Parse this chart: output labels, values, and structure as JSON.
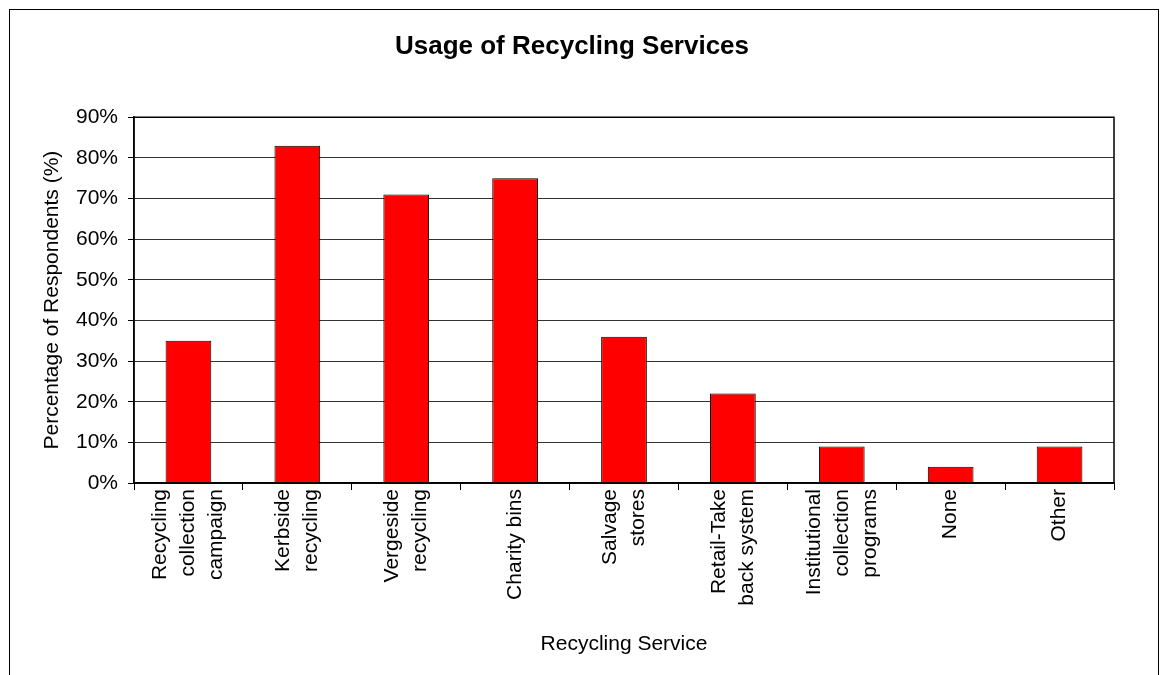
{
  "chart_data": {
    "type": "bar",
    "title": "Usage of Recycling Services",
    "xlabel": "Recycling Service",
    "ylabel": "Percentage of Respondents (%)",
    "categories": [
      "Recycling collection campaign",
      "Kerbside recycling",
      "Vergeside recycling",
      "Charity bins",
      "Salvage stores",
      "Retail-Take back system",
      "Institutional collection programs",
      "None",
      "Other"
    ],
    "values": [
      35,
      83,
      71,
      75,
      36,
      22,
      9,
      4,
      9
    ],
    "color": "#ff0000",
    "ylim": [
      0,
      90
    ],
    "yticks": [
      {
        "value": 0,
        "label": "0%"
      },
      {
        "value": 10,
        "label": "10%"
      },
      {
        "value": 20,
        "label": "20%"
      },
      {
        "value": 30,
        "label": "30%"
      },
      {
        "value": 40,
        "label": "40%"
      },
      {
        "value": 50,
        "label": "50%"
      },
      {
        "value": 60,
        "label": "60%"
      },
      {
        "value": 70,
        "label": "70%"
      },
      {
        "value": 80,
        "label": "80%"
      },
      {
        "value": 90,
        "label": "90%"
      }
    ],
    "grid": "y"
  }
}
